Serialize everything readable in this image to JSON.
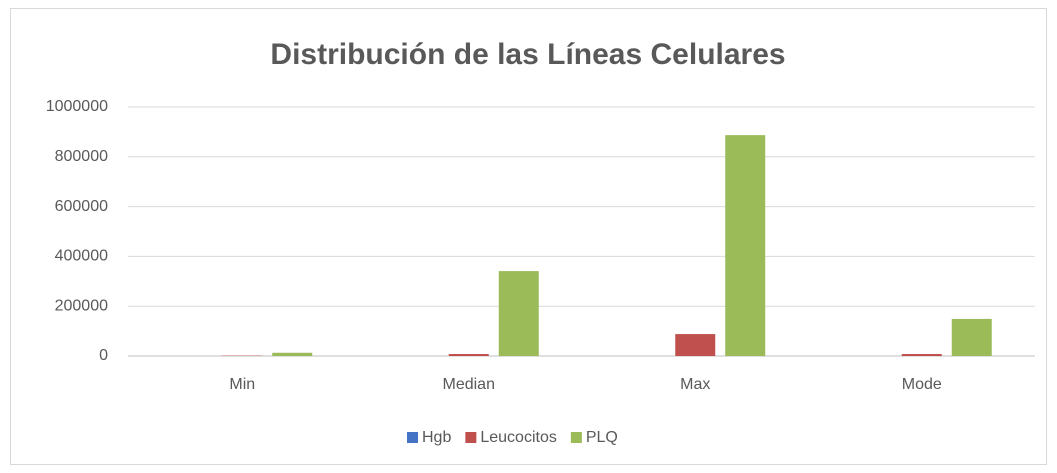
{
  "chart_data": {
    "type": "bar",
    "title": "Distribución de las Líneas Celulares",
    "categories": [
      "Min",
      "Median",
      "Max",
      "Mode"
    ],
    "series": [
      {
        "name": "Hgb",
        "color": "#4472c4",
        "values": [
          5,
          12,
          18,
          12
        ]
      },
      {
        "name": "Leucocitos",
        "color": "#c0504d",
        "values": [
          1500,
          8000,
          88000,
          8000
        ]
      },
      {
        "name": "PLQ",
        "color": "#9bbb59",
        "values": [
          13000,
          341000,
          887000,
          149000
        ]
      }
    ],
    "ylim": [
      0,
      1000000
    ],
    "yticks": [
      0,
      200000,
      400000,
      600000,
      800000,
      1000000
    ],
    "grid": true,
    "legend": "bottom"
  }
}
